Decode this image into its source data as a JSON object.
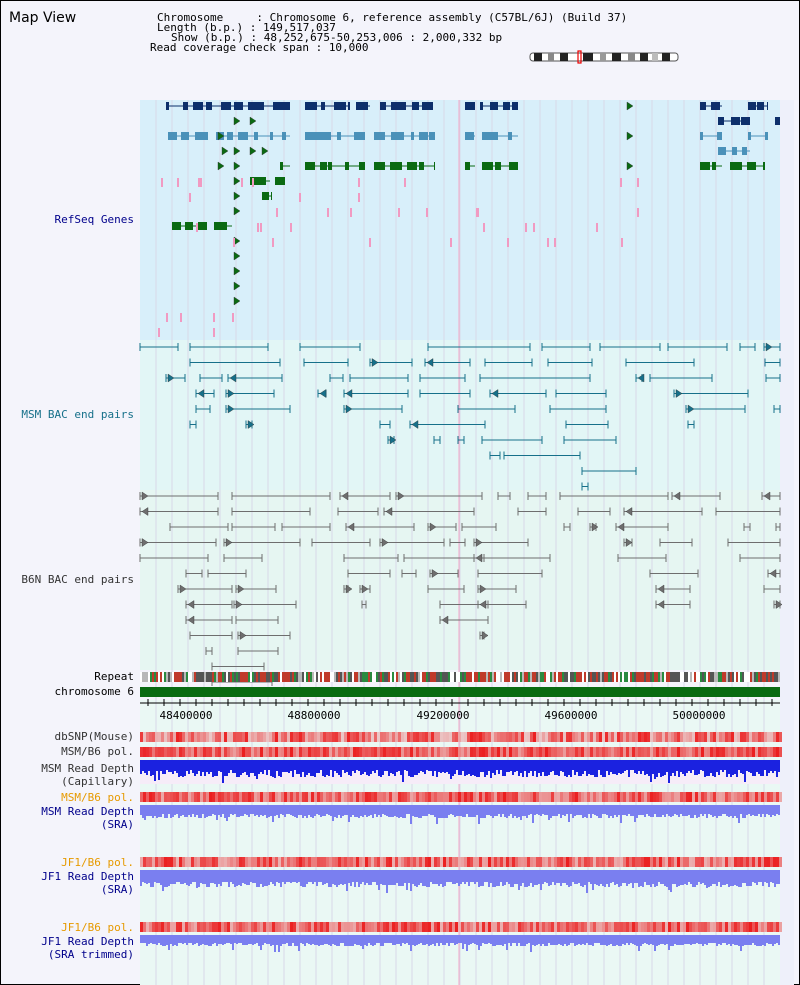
{
  "header": {
    "title": "Map View",
    "chromosome_label": "Chromosome     :",
    "chromosome_value": "Chromosome 6, reference assembly (C57BL/6J) (Build 37)",
    "length_label": "Length (b.p.) :",
    "length_value": "149,517,037",
    "show_label": "Show (b.p.) :",
    "show_value": "48,252,675-50,253,006 : 2,000,332 bp",
    "coverage_label": "Read coverage check span :",
    "coverage_value": "10,000"
  },
  "tracks": {
    "refseq": "RefSeq Genes",
    "msm_bac": "MSM BAC end pairs",
    "b6n_bac": "B6N BAC end pairs",
    "repeat": "Repeat",
    "chromosome": "chromosome 6",
    "dbsnp": "dbSNP(Mouse)",
    "msm_b6_pol_1": "MSM/B6 pol.",
    "msm_read_depth_cap_1": "MSM Read Depth",
    "msm_read_depth_cap_2": "(Capillary)",
    "msm_b6_pol_2": "MSM/B6 pol.",
    "msm_read_depth_sra_1": "MSM Read Depth",
    "msm_read_depth_sra_2": "(SRA)",
    "jf1_b6_pol_1": "JF1/B6 pol.",
    "jf1_read_depth_sra_1": "JF1 Read Depth",
    "jf1_read_depth_sra_2": "(SRA)",
    "jf1_b6_pol_2": "JF1/B6 pol.",
    "jf1_read_depth_trim_1": "JF1 Read Depth",
    "jf1_read_depth_trim_2": "(SRA trimmed)"
  },
  "axis": {
    "ticks": [
      "48400000",
      "48800000",
      "49200000",
      "49600000",
      "50000000"
    ]
  },
  "colors": {
    "refseq_bg": "#d8effa",
    "bac_bg": "#e2f6f6",
    "lower_bg": "#eaf8f4",
    "gene_dark": "#0d2f6b",
    "gene_mid": "#4a91b9",
    "gene_green": "#0a6a12",
    "msm_bac": "#16708a",
    "b6n_bac": "#6e6e6e",
    "chrom_bar": "#0a6a12",
    "depth_blue": "#1b22e0",
    "depth_light": "#7a7ff0",
    "label_blue": "#00008b",
    "label_orange": "#e69a00"
  }
}
